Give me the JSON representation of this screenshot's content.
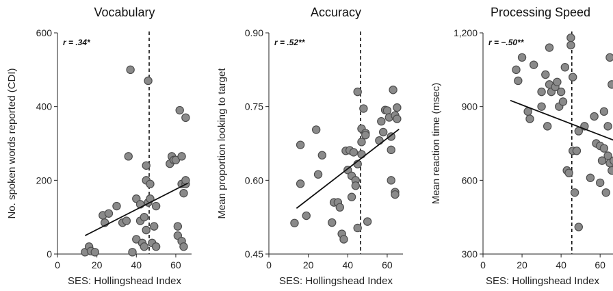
{
  "chart_data": [
    {
      "type": "scatter",
      "title": "Vocabulary",
      "xlabel": "SES: Hollingshead Index",
      "ylabel": "No. spoken words reported (CDI)",
      "annotation": "r = .34*",
      "x_ticks": [
        "0",
        "20",
        "40",
        "60"
      ],
      "y_ticks": [
        "0",
        "200",
        "400",
        "600"
      ],
      "xlim": [
        0,
        68
      ],
      "ylim": [
        0,
        600
      ],
      "median_line_x": 46.5,
      "fit_line": [
        [
          14,
          50
        ],
        [
          66,
          192
        ]
      ],
      "points": [
        [
          14,
          5
        ],
        [
          16,
          20
        ],
        [
          17,
          8
        ],
        [
          19,
          5
        ],
        [
          23,
          105
        ],
        [
          24,
          85
        ],
        [
          26,
          110
        ],
        [
          30,
          130
        ],
        [
          33,
          85
        ],
        [
          35,
          90
        ],
        [
          36,
          265
        ],
        [
          37,
          500
        ],
        [
          38,
          5
        ],
        [
          40,
          150
        ],
        [
          40,
          40
        ],
        [
          42,
          135
        ],
        [
          42,
          90
        ],
        [
          43,
          30
        ],
        [
          44,
          100
        ],
        [
          44,
          20
        ],
        [
          45,
          240
        ],
        [
          45,
          200
        ],
        [
          45,
          65
        ],
        [
          46,
          140
        ],
        [
          46,
          470
        ],
        [
          47,
          190
        ],
        [
          47,
          150
        ],
        [
          48,
          30
        ],
        [
          49,
          75
        ],
        [
          50,
          20
        ],
        [
          50,
          130
        ],
        [
          57,
          245
        ],
        [
          58,
          265
        ],
        [
          59,
          255
        ],
        [
          60,
          255
        ],
        [
          61,
          75
        ],
        [
          61,
          50
        ],
        [
          62,
          390
        ],
        [
          63,
          265
        ],
        [
          63,
          190
        ],
        [
          63,
          35
        ],
        [
          64,
          165
        ],
        [
          64,
          20
        ],
        [
          65,
          190
        ],
        [
          65,
          370
        ],
        [
          65,
          200
        ]
      ]
    },
    {
      "type": "scatter",
      "title": "Accuracy",
      "xlabel": "SES: Hollingshead Index",
      "ylabel": "Mean proportion looking to target",
      "annotation": "r = .52**",
      "x_ticks": [
        "0",
        "20",
        "40",
        "60"
      ],
      "y_ticks": [
        "0.45",
        "0.60",
        "0.75",
        "0.90"
      ],
      "xlim": [
        0,
        68
      ],
      "ylim": [
        0.45,
        0.9
      ],
      "median_line_x": 46.5,
      "fit_line": [
        [
          14,
          0.543
        ],
        [
          66,
          0.704
        ]
      ],
      "points": [
        [
          13,
          0.513
        ],
        [
          16,
          0.672
        ],
        [
          16,
          0.593
        ],
        [
          19,
          0.528
        ],
        [
          24,
          0.703
        ],
        [
          25,
          0.612
        ],
        [
          27,
          0.651
        ],
        [
          32,
          0.514
        ],
        [
          33,
          0.555
        ],
        [
          35,
          0.555
        ],
        [
          36,
          0.545
        ],
        [
          37,
          0.491
        ],
        [
          38,
          0.48
        ],
        [
          39,
          0.66
        ],
        [
          40,
          0.621
        ],
        [
          41,
          0.661
        ],
        [
          42,
          0.609
        ],
        [
          42,
          0.566
        ],
        [
          43,
          0.657
        ],
        [
          44,
          0.6
        ],
        [
          44,
          0.589
        ],
        [
          45,
          0.633
        ],
        [
          45,
          0.503
        ],
        [
          45,
          0.78
        ],
        [
          47,
          0.705
        ],
        [
          47,
          0.678
        ],
        [
          47,
          0.653
        ],
        [
          48,
          0.746
        ],
        [
          49,
          0.696
        ],
        [
          49,
          0.692
        ],
        [
          50,
          0.516
        ],
        [
          56,
          0.681
        ],
        [
          57,
          0.72
        ],
        [
          58,
          0.698
        ],
        [
          59,
          0.743
        ],
        [
          60,
          0.742
        ],
        [
          61,
          0.728
        ],
        [
          62,
          0.662
        ],
        [
          62,
          0.689
        ],
        [
          62,
          0.6
        ],
        [
          63,
          0.784
        ],
        [
          64,
          0.732
        ],
        [
          64,
          0.576
        ],
        [
          64,
          0.571
        ],
        [
          65,
          0.748
        ],
        [
          65,
          0.725
        ]
      ]
    },
    {
      "type": "scatter",
      "title": "Processing Speed",
      "xlabel": "SES: Hollingshead Index",
      "ylabel": "Mean reaction time (msec)",
      "annotation": "r = −.50**",
      "x_ticks": [
        "0",
        "20",
        "40",
        "60"
      ],
      "y_ticks": [
        "300",
        "600",
        "900",
        "1,200"
      ],
      "xlim": [
        0,
        68
      ],
      "ylim": [
        300,
        1200
      ],
      "median_line_x": 45.5,
      "fit_line": [
        [
          14,
          925
        ],
        [
          68,
          760
        ]
      ],
      "points": [
        [
          17,
          1050
        ],
        [
          18,
          1005
        ],
        [
          20,
          1100
        ],
        [
          23,
          880
        ],
        [
          24,
          850
        ],
        [
          26,
          1070
        ],
        [
          30,
          960
        ],
        [
          30,
          900
        ],
        [
          32,
          1030
        ],
        [
          33,
          820
        ],
        [
          34,
          1140
        ],
        [
          34,
          990
        ],
        [
          35,
          960
        ],
        [
          37,
          980
        ],
        [
          38,
          1000
        ],
        [
          39,
          900
        ],
        [
          40,
          960
        ],
        [
          41,
          920
        ],
        [
          42,
          1060
        ],
        [
          43,
          640
        ],
        [
          44,
          630
        ],
        [
          45,
          1180
        ],
        [
          45,
          1150
        ],
        [
          46,
          720
        ],
        [
          46,
          1020
        ],
        [
          47,
          550
        ],
        [
          48,
          720
        ],
        [
          49,
          800
        ],
        [
          49,
          410
        ],
        [
          52,
          820
        ],
        [
          55,
          610
        ],
        [
          57,
          860
        ],
        [
          58,
          750
        ],
        [
          60,
          590
        ],
        [
          60,
          740
        ],
        [
          61,
          680
        ],
        [
          62,
          880
        ],
        [
          62,
          730
        ],
        [
          63,
          550
        ],
        [
          64,
          820
        ],
        [
          64,
          700
        ],
        [
          65,
          670
        ],
        [
          65,
          1100
        ],
        [
          66,
          990
        ],
        [
          66,
          640
        ],
        [
          67,
          680
        ]
      ]
    }
  ]
}
